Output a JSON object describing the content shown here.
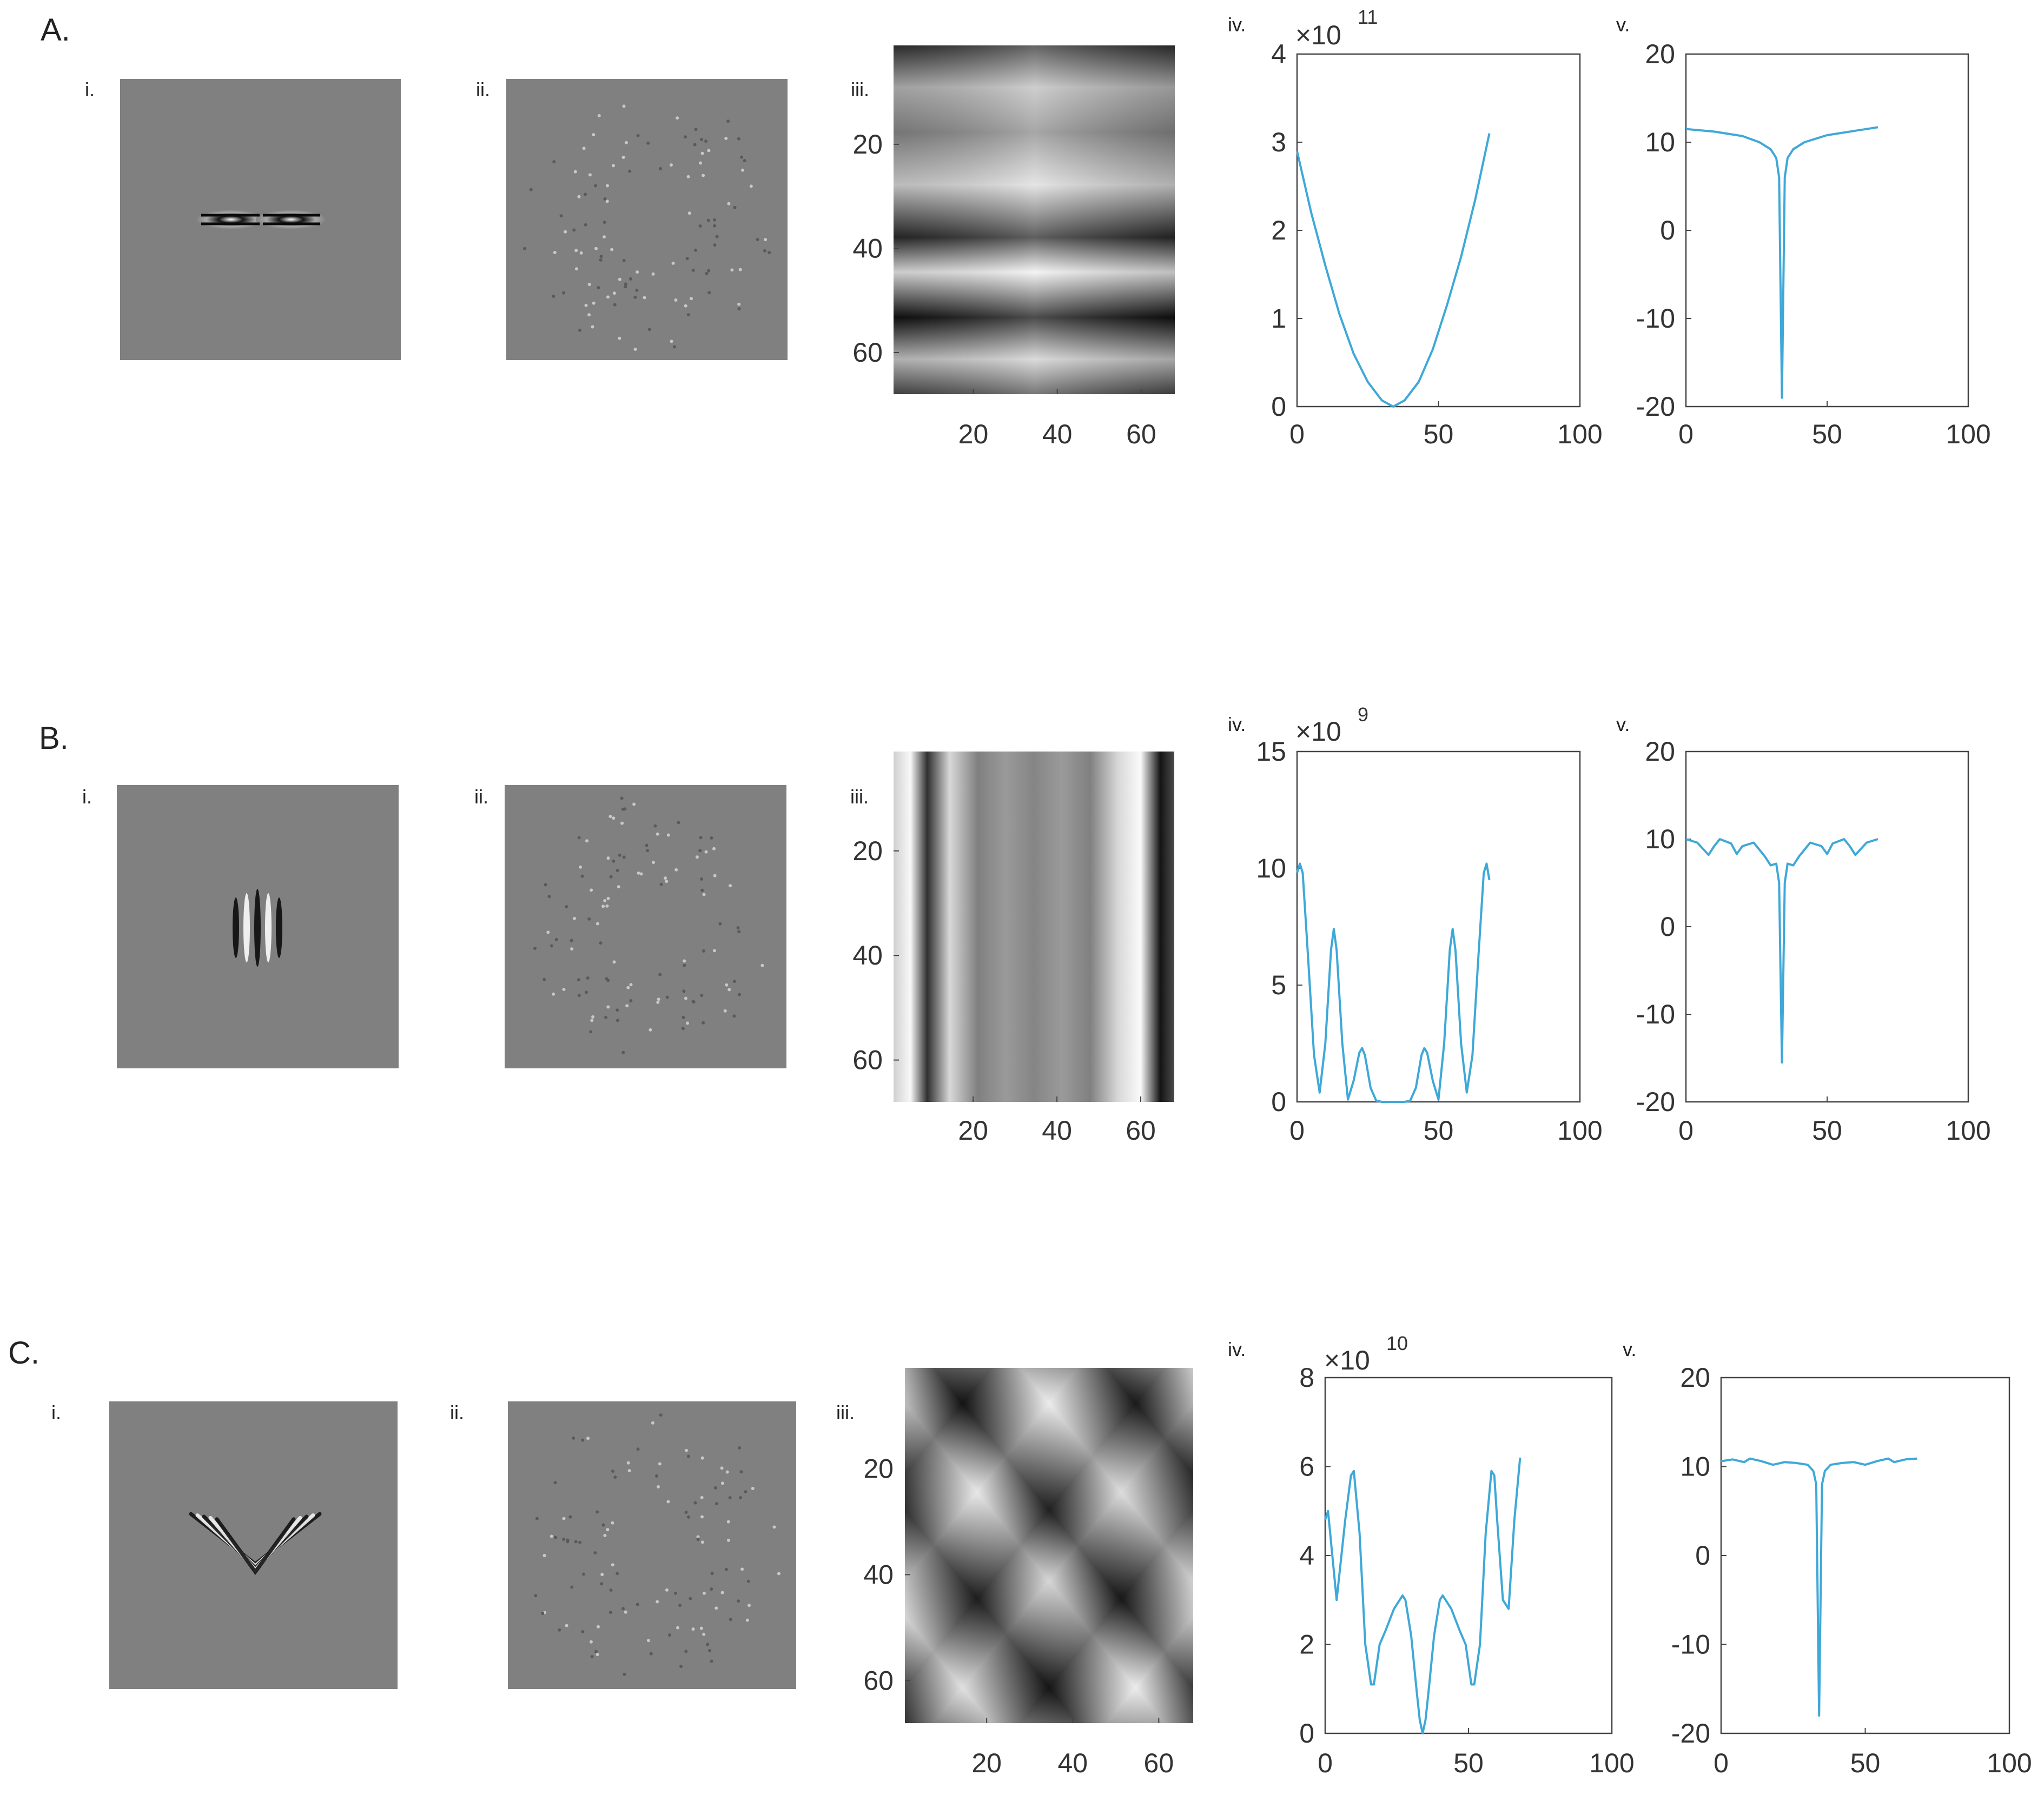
{
  "colors": {
    "line": "#3ea8d8",
    "axis": "#444444",
    "background_gray": "#808080"
  },
  "rows": [
    {
      "label": "A.",
      "panels": {
        "i": "i.",
        "ii": "ii.",
        "iii": "iii.",
        "iv": "iv.",
        "v": "v."
      },
      "kernel": "horizontal-two-blob",
      "exponent": {
        "base": "×10",
        "power": "11"
      }
    },
    {
      "label": "B.",
      "panels": {
        "i": "i.",
        "ii": "ii.",
        "iii": "iii.",
        "iv": "iv.",
        "v": "v."
      },
      "kernel": "vertical-three-stripes",
      "exponent": {
        "base": "×10",
        "power": "9"
      }
    },
    {
      "label": "C.",
      "panels": {
        "i": "i.",
        "ii": "ii.",
        "iii": "iii.",
        "iv": "iv.",
        "v": "v."
      },
      "kernel": "chevron",
      "exponent": {
        "base": "×10",
        "power": "10"
      }
    }
  ],
  "chart_data": [
    {
      "row": "A",
      "panel": "iii",
      "type": "heatmap",
      "colormap": "gray",
      "xticks": [
        "20",
        "40",
        "60"
      ],
      "yticks": [
        "20",
        "40",
        "60"
      ],
      "xlim": [
        1,
        68
      ],
      "ylim": [
        1,
        68
      ]
    },
    {
      "row": "A",
      "panel": "iv",
      "type": "line",
      "xlim": [
        0,
        100
      ],
      "ylim": [
        0,
        4
      ],
      "xticks": [
        "0",
        "50",
        "100"
      ],
      "yticks": [
        "0",
        "1",
        "2",
        "3",
        "4"
      ],
      "x": [
        0,
        5,
        10,
        15,
        20,
        25,
        30,
        34,
        38,
        43,
        48,
        53,
        58,
        63,
        68
      ],
      "y": [
        2.9,
        2.2,
        1.6,
        1.05,
        0.6,
        0.28,
        0.07,
        0,
        0.07,
        0.28,
        0.65,
        1.15,
        1.7,
        2.35,
        3.1
      ]
    },
    {
      "row": "A",
      "panel": "v",
      "type": "line",
      "xlim": [
        0,
        100
      ],
      "ylim": [
        -20,
        20
      ],
      "xticks": [
        "0",
        "50",
        "100"
      ],
      "yticks": [
        "-20",
        "-10",
        "0",
        "10",
        "20"
      ],
      "x": [
        0,
        10,
        20,
        26,
        30,
        32,
        33,
        34,
        35,
        36,
        38,
        42,
        50,
        60,
        68
      ],
      "y": [
        11.5,
        11.2,
        10.7,
        10,
        9.2,
        8.2,
        6,
        -19,
        6,
        8.2,
        9.2,
        10,
        10.8,
        11.3,
        11.7
      ]
    },
    {
      "row": "B",
      "panel": "iii",
      "type": "heatmap",
      "colormap": "gray",
      "xticks": [
        "20",
        "40",
        "60"
      ],
      "yticks": [
        "20",
        "40",
        "60"
      ],
      "xlim": [
        1,
        68
      ],
      "ylim": [
        1,
        68
      ]
    },
    {
      "row": "B",
      "panel": "iv",
      "type": "line",
      "xlim": [
        0,
        100
      ],
      "ylim": [
        0,
        15
      ],
      "xticks": [
        "0",
        "50",
        "100"
      ],
      "yticks": [
        "0",
        "5",
        "10",
        "15"
      ],
      "x": [
        0,
        1,
        2,
        4,
        6,
        8,
        10,
        12,
        13,
        14,
        16,
        18,
        20,
        22,
        23,
        24,
        26,
        28,
        30,
        34,
        38,
        40,
        42,
        44,
        45,
        46,
        48,
        50,
        52,
        54,
        55,
        56,
        58,
        60,
        62,
        64,
        66,
        67,
        68
      ],
      "y": [
        9.8,
        10.2,
        9.8,
        6,
        2,
        0.4,
        2.5,
        6.5,
        7.4,
        6.5,
        2.5,
        0.1,
        0.9,
        2.1,
        2.3,
        2.0,
        0.6,
        0.05,
        0,
        0,
        0,
        0.05,
        0.6,
        2.0,
        2.3,
        2.1,
        0.9,
        0.1,
        2.5,
        6.5,
        7.4,
        6.5,
        2.5,
        0.4,
        2,
        6,
        9.8,
        10.2,
        9.5
      ]
    },
    {
      "row": "B",
      "panel": "v",
      "type": "line",
      "xlim": [
        0,
        100
      ],
      "ylim": [
        -20,
        20
      ],
      "xticks": [
        "0",
        "50",
        "100"
      ],
      "yticks": [
        "-20",
        "-10",
        "0",
        "10",
        "20"
      ],
      "x": [
        0,
        4,
        8,
        10,
        12,
        16,
        18,
        20,
        24,
        28,
        30,
        32,
        33,
        34,
        35,
        36,
        38,
        40,
        44,
        48,
        50,
        52,
        56,
        58,
        60,
        64,
        68
      ],
      "y": [
        10,
        9.6,
        8.2,
        9.2,
        10,
        9.5,
        8.3,
        9.2,
        9.6,
        8,
        7,
        7.2,
        5,
        -15.5,
        5,
        7.2,
        7,
        8,
        9.6,
        9.2,
        8.3,
        9.5,
        10,
        9.2,
        8.2,
        9.6,
        10
      ]
    },
    {
      "row": "C",
      "panel": "iii",
      "type": "heatmap",
      "colormap": "gray",
      "xticks": [
        "20",
        "40",
        "60"
      ],
      "yticks": [
        "20",
        "40",
        "60"
      ],
      "xlim": [
        1,
        68
      ],
      "ylim": [
        1,
        68
      ]
    },
    {
      "row": "C",
      "panel": "iv",
      "type": "line",
      "xlim": [
        0,
        100
      ],
      "ylim": [
        0,
        8
      ],
      "xticks": [
        "0",
        "50",
        "100"
      ],
      "yticks": [
        "0",
        "2",
        "4",
        "6",
        "8"
      ],
      "x": [
        0,
        1,
        4,
        7,
        9,
        10,
        12,
        14,
        16,
        17,
        19,
        21,
        24,
        27,
        28,
        30,
        32,
        33,
        34,
        35,
        36,
        38,
        40,
        41,
        44,
        47,
        49,
        51,
        52,
        54,
        56,
        58,
        59,
        60,
        62,
        64,
        66,
        68
      ],
      "y": [
        4.8,
        5.0,
        3.0,
        4.8,
        5.8,
        5.9,
        4.5,
        2.0,
        1.1,
        1.1,
        2.0,
        2.3,
        2.8,
        3.1,
        3.0,
        2.2,
        0.9,
        0.3,
        0,
        0.3,
        0.9,
        2.2,
        3.0,
        3.1,
        2.8,
        2.3,
        2.0,
        1.1,
        1.1,
        2.0,
        4.5,
        5.9,
        5.8,
        4.8,
        3.0,
        2.8,
        4.8,
        6.2
      ]
    },
    {
      "row": "C",
      "panel": "v",
      "type": "line",
      "xlim": [
        0,
        100
      ],
      "ylim": [
        -20,
        20
      ],
      "xticks": [
        "0",
        "50",
        "100"
      ],
      "yticks": [
        "-20",
        "-10",
        "0",
        "10",
        "20"
      ],
      "x": [
        0,
        4,
        8,
        10,
        14,
        18,
        22,
        26,
        30,
        32,
        33,
        34,
        35,
        36,
        38,
        42,
        46,
        50,
        54,
        58,
        60,
        64,
        68
      ],
      "y": [
        10.6,
        10.8,
        10.5,
        10.9,
        10.6,
        10.2,
        10.5,
        10.4,
        10.2,
        9.5,
        8,
        -18,
        8,
        9.5,
        10.2,
        10.4,
        10.5,
        10.2,
        10.6,
        10.9,
        10.5,
        10.8,
        10.9
      ]
    }
  ]
}
